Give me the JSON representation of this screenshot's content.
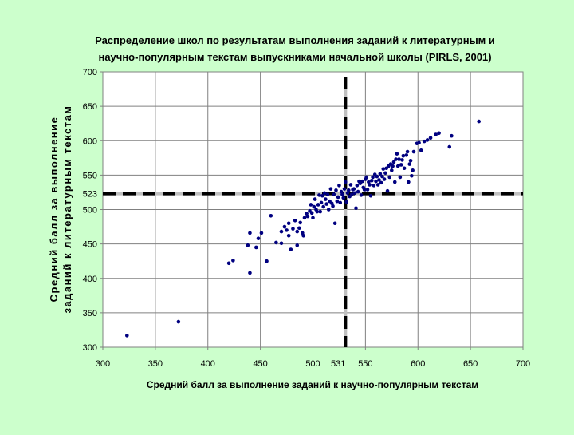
{
  "chart_data": {
    "type": "scatter",
    "title_line1": "Распределение школ по результатам выполнения заданий к литературным и",
    "title_line2": "научно-популярным текстам выпускниками начальной школы (PIRLS, 2001)",
    "xlabel": "Средний балл за выполнение заданий к научно-популярным текстам",
    "ylabel_line1": "Средний балл за выполнение",
    "ylabel_line2": "заданий к литературным текстам",
    "xlim": [
      300,
      700
    ],
    "ylim": [
      300,
      700
    ],
    "x_ticks": [
      300,
      350,
      400,
      450,
      500,
      550,
      600,
      650,
      700
    ],
    "y_ticks": [
      300,
      350,
      400,
      450,
      500,
      550,
      600,
      650,
      700
    ],
    "grid": true,
    "reference_lines": {
      "x": 531,
      "y": 523,
      "x_label": "531",
      "y_label": "523"
    },
    "marker_color": "#000080",
    "series": [
      {
        "points": [
          [
            323,
            317
          ],
          [
            372,
            337
          ],
          [
            420,
            422
          ],
          [
            424,
            426
          ],
          [
            440,
            408
          ],
          [
            438,
            448
          ],
          [
            440,
            466
          ],
          [
            446,
            445
          ],
          [
            448,
            458
          ],
          [
            451,
            466
          ],
          [
            456,
            425
          ],
          [
            460,
            491
          ],
          [
            465,
            452
          ],
          [
            470,
            451
          ],
          [
            470,
            468
          ],
          [
            473,
            475
          ],
          [
            475,
            470
          ],
          [
            477,
            480
          ],
          [
            477,
            462
          ],
          [
            479,
            442
          ],
          [
            481,
            472
          ],
          [
            483,
            484
          ],
          [
            485,
            468
          ],
          [
            485,
            448
          ],
          [
            487,
            473
          ],
          [
            488,
            481
          ],
          [
            490,
            466
          ],
          [
            491,
            462
          ],
          [
            492,
            488
          ],
          [
            494,
            494
          ],
          [
            495,
            490
          ],
          [
            497,
            498
          ],
          [
            498,
            507
          ],
          [
            499,
            495
          ],
          [
            500,
            488
          ],
          [
            501,
            504
          ],
          [
            502,
            515
          ],
          [
            503,
            500
          ],
          [
            504,
            497
          ],
          [
            505,
            507
          ],
          [
            506,
            521
          ],
          [
            507,
            497
          ],
          [
            508,
            510
          ],
          [
            509,
            520
          ],
          [
            510,
            504
          ],
          [
            511,
            524
          ],
          [
            512,
            515
          ],
          [
            513,
            508
          ],
          [
            514,
            522
          ],
          [
            515,
            500
          ],
          [
            516,
            512
          ],
          [
            517,
            530
          ],
          [
            518,
            509
          ],
          [
            519,
            505
          ],
          [
            520,
            522
          ],
          [
            521,
            480
          ],
          [
            522,
            528
          ],
          [
            523,
            512
          ],
          [
            524,
            518
          ],
          [
            525,
            535
          ],
          [
            526,
            510
          ],
          [
            527,
            526
          ],
          [
            528,
            522
          ],
          [
            529,
            517
          ],
          [
            530,
            530
          ],
          [
            531,
            540
          ],
          [
            532,
            511
          ],
          [
            533,
            524
          ],
          [
            534,
            528
          ],
          [
            535,
            519
          ],
          [
            536,
            536
          ],
          [
            537,
            522
          ],
          [
            538,
            529
          ],
          [
            539,
            530
          ],
          [
            540,
            524
          ],
          [
            541,
            502
          ],
          [
            542,
            535
          ],
          [
            543,
            526
          ],
          [
            544,
            541
          ],
          [
            545,
            538
          ],
          [
            546,
            521
          ],
          [
            547,
            541
          ],
          [
            548,
            532
          ],
          [
            549,
            529
          ],
          [
            550,
            544
          ],
          [
            551,
            547
          ],
          [
            552,
            529
          ],
          [
            553,
            540
          ],
          [
            554,
            536
          ],
          [
            555,
            520
          ],
          [
            556,
            542
          ],
          [
            557,
            547
          ],
          [
            558,
            535
          ],
          [
            559,
            551
          ],
          [
            560,
            541
          ],
          [
            561,
            548
          ],
          [
            562,
            536
          ],
          [
            563,
            543
          ],
          [
            564,
            552
          ],
          [
            565,
            539
          ],
          [
            566,
            548
          ],
          [
            567,
            559
          ],
          [
            568,
            544
          ],
          [
            569,
            553
          ],
          [
            570,
            560
          ],
          [
            571,
            527
          ],
          [
            572,
            563
          ],
          [
            573,
            547
          ],
          [
            574,
            566
          ],
          [
            575,
            557
          ],
          [
            576,
            563
          ],
          [
            577,
            569
          ],
          [
            578,
            540
          ],
          [
            579,
            573
          ],
          [
            580,
            581
          ],
          [
            581,
            563
          ],
          [
            582,
            573
          ],
          [
            583,
            547
          ],
          [
            584,
            565
          ],
          [
            585,
            572
          ],
          [
            586,
            578
          ],
          [
            587,
            560
          ],
          [
            589,
            579
          ],
          [
            590,
            584
          ],
          [
            591,
            540
          ],
          [
            592,
            566
          ],
          [
            593,
            571
          ],
          [
            594,
            549
          ],
          [
            595,
            557
          ],
          [
            596,
            584
          ],
          [
            599,
            596
          ],
          [
            601,
            597
          ],
          [
            603,
            586
          ],
          [
            606,
            599
          ],
          [
            609,
            601
          ],
          [
            612,
            604
          ],
          [
            617,
            609
          ],
          [
            620,
            611
          ],
          [
            630,
            591
          ],
          [
            632,
            607
          ],
          [
            658,
            628
          ]
        ]
      }
    ]
  }
}
